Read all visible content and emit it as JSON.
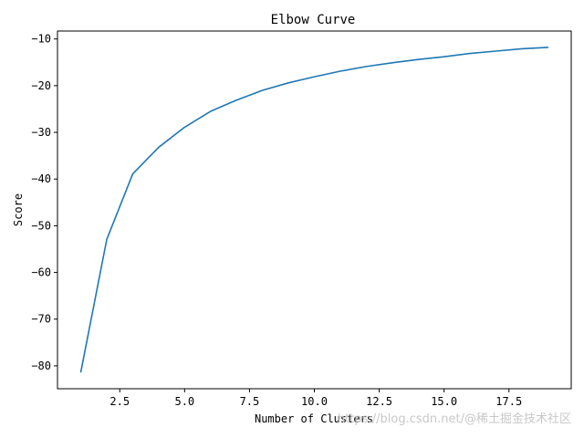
{
  "chart_data": {
    "type": "line",
    "title": "Elbow Curve",
    "xlabel": "Number of Clusters",
    "ylabel": "Score",
    "xlim": [
      0.1,
      19.9
    ],
    "ylim": [
      -84.9,
      -8.3
    ],
    "x_ticks": [
      2.5,
      5.0,
      7.5,
      10.0,
      12.5,
      15.0,
      17.5
    ],
    "x_tick_labels": [
      "2.5",
      "5.0",
      "7.5",
      "10.0",
      "12.5",
      "15.0",
      "17.5"
    ],
    "y_ticks": [
      -80,
      -70,
      -60,
      -50,
      -40,
      -30,
      -20,
      -10
    ],
    "y_tick_labels": [
      "-80",
      "-70",
      "-60",
      "-50",
      "-40",
      "-30",
      "-20",
      "-10"
    ],
    "grid": false,
    "series": [
      {
        "color": "#1f77b4",
        "x": [
          1,
          2,
          3,
          4,
          5,
          6,
          7,
          8,
          9,
          10,
          11,
          12,
          13,
          14,
          15,
          16,
          17,
          18,
          19
        ],
        "y": [
          -81.3,
          -52.9,
          -38.9,
          -33.2,
          -28.9,
          -25.5,
          -23.1,
          -21.0,
          -19.4,
          -18.1,
          -16.9,
          -15.9,
          -15.1,
          -14.4,
          -13.8,
          -13.1,
          -12.6,
          -12.1,
          -11.8
        ]
      }
    ]
  },
  "watermark": "https://blog.csdn.net/@稀土掘金技术社区"
}
